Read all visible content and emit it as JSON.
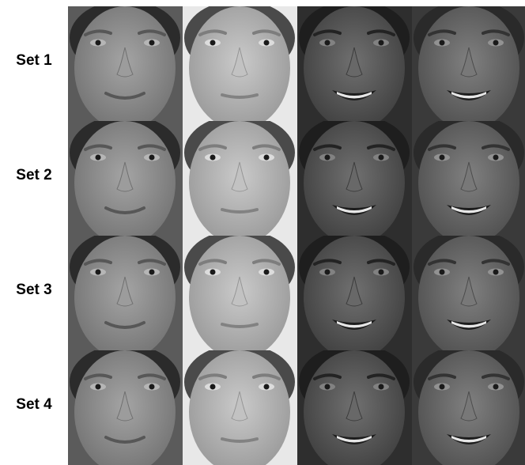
{
  "rows": [
    {
      "label": "Set 1"
    },
    {
      "label": "Set 2"
    },
    {
      "label": "Set 3"
    },
    {
      "label": "Set 4"
    }
  ],
  "subjects": [
    {
      "id": "subject-1",
      "tone": "#8e8e8e",
      "bg": "#5b5b5b",
      "hair": "#2b2b2b",
      "expression": "slight-smile"
    },
    {
      "id": "subject-2",
      "tone": "#b4b4b4",
      "bg": "#e8e8e8",
      "hair": "#4a4a4a",
      "expression": "neutral"
    },
    {
      "id": "subject-3",
      "tone": "#5a5a5a",
      "bg": "#2e2e2e",
      "hair": "#1e1e1e",
      "expression": "broad-smile"
    },
    {
      "id": "subject-4",
      "tone": "#6a6a6a",
      "bg": "#3a3a3a",
      "hair": "#2a2a2a",
      "expression": "smile"
    }
  ]
}
